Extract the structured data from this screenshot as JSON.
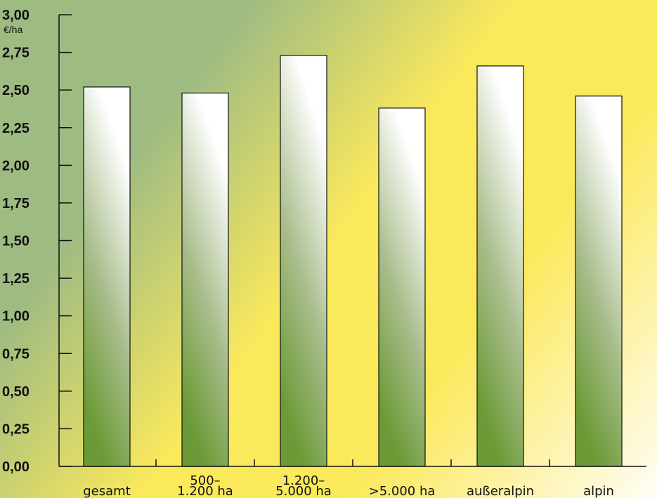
{
  "chart_data": {
    "type": "bar",
    "title": "",
    "xlabel": "",
    "ylabel": "€/ha",
    "ylim": [
      0,
      3.0
    ],
    "yticks": [
      "0,00",
      "0,25",
      "0,50",
      "0,75",
      "1,00",
      "1,25",
      "1,50",
      "1,75",
      "2,00",
      "2,25",
      "2,50",
      "2,75",
      "3,00"
    ],
    "categories": [
      [
        "gesamt"
      ],
      [
        "500–",
        "1.200 ha"
      ],
      [
        "1.200–",
        "5.000 ha"
      ],
      [
        ">5.000 ha"
      ],
      [
        "außeralpin"
      ],
      [
        "alpin"
      ]
    ],
    "values": [
      2.52,
      2.48,
      2.73,
      2.38,
      2.66,
      2.46
    ],
    "grid": false,
    "legend": "none",
    "colors": {
      "background_green": "#9ebb82",
      "background_yellow": "#fbe95c",
      "background_white": "#fffdf6",
      "bar_bottom": "#6b9a36",
      "bar_top": "#ffffff",
      "bar_outline": "#111111",
      "axis": "#111111"
    }
  }
}
